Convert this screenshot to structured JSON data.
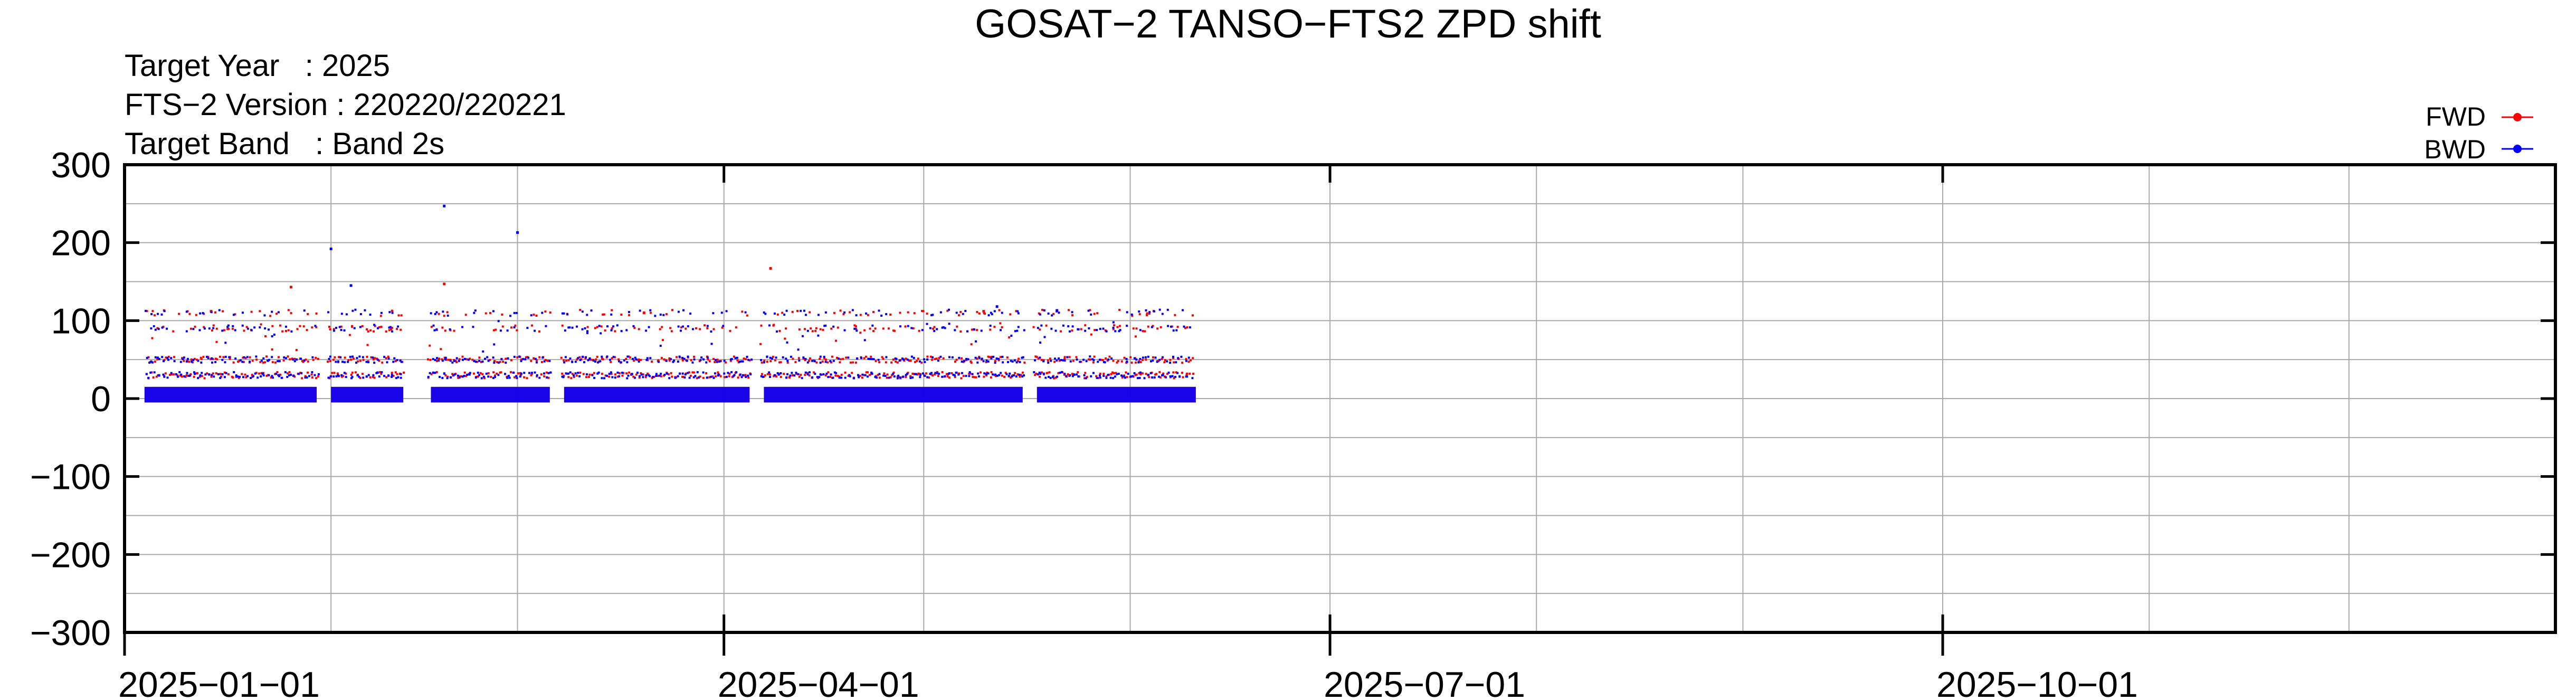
{
  "chart_data": {
    "type": "scatter",
    "title": "GOSAT−2 TANSO−FTS2 ZPD shift",
    "info": {
      "target_year": "Target Year   : 2025",
      "fts_version": "FTS−2 Version : 220220/220221",
      "target_band": "Target Band   : Band 2s"
    },
    "xlabel": "",
    "ylabel": "",
    "xlim": [
      "2025-01-01",
      "2026-01-01"
    ],
    "ylim": [
      -300,
      300
    ],
    "yticks": [
      300,
      200,
      100,
      0,
      -100,
      -200,
      -300
    ],
    "ytick_labels": [
      "300",
      "200",
      "100",
      "0",
      "−100",
      "−200",
      "−300"
    ],
    "xticks": [
      "2025-01-01",
      "2025-04-01",
      "2025-07-01",
      "2025-10-01"
    ],
    "xtick_labels": [
      "2025−01−01",
      "2025−04−01",
      "2025−07−01",
      "2025−10−01"
    ],
    "minor_xticks": [
      "2025-02-01",
      "2025-03-01",
      "2025-05-01",
      "2025-06-01",
      "2025-08-01",
      "2025-09-01",
      "2025-11-01",
      "2025-12-01"
    ],
    "grid": true,
    "legend_position": "top-right",
    "data_range": {
      "start": "2025-01-04",
      "end": "2025-06-10"
    },
    "gaps": [
      [
        "2025-01-30",
        "2025-01-31"
      ],
      [
        "2025-02-12",
        "2025-02-15"
      ],
      [
        "2025-03-06",
        "2025-03-07"
      ],
      [
        "2025-04-05",
        "2025-04-06"
      ],
      [
        "2025-05-16",
        "2025-05-17"
      ],
      [
        "2025-06-13",
        "2025-06-14"
      ]
    ],
    "series": [
      {
        "name": "FWD",
        "color": "#ff0000",
        "dense_band": [
          -5,
          15
        ],
        "levels": [
          30,
          50,
          90,
          110
        ],
        "outliers": [
          [
            "2025-01-26",
            143
          ],
          [
            "2025-02-18",
            147
          ],
          [
            "2025-04-08",
            167
          ],
          [
            "2025-01-14",
            112
          ],
          [
            "2025-03-20",
            110
          ],
          [
            "2025-05-10",
            112
          ]
        ]
      },
      {
        "name": "BWD",
        "color": "#0000ff",
        "dense_band": [
          -5,
          15
        ],
        "levels": [
          30,
          50,
          90,
          110
        ],
        "outliers": [
          [
            "2025-02-18",
            247
          ],
          [
            "2025-03-01",
            213
          ],
          [
            "2025-02-01",
            192
          ],
          [
            "2025-02-04",
            145
          ],
          [
            "2025-05-12",
            118
          ],
          [
            "2025-05-21",
            113
          ]
        ]
      }
    ]
  }
}
